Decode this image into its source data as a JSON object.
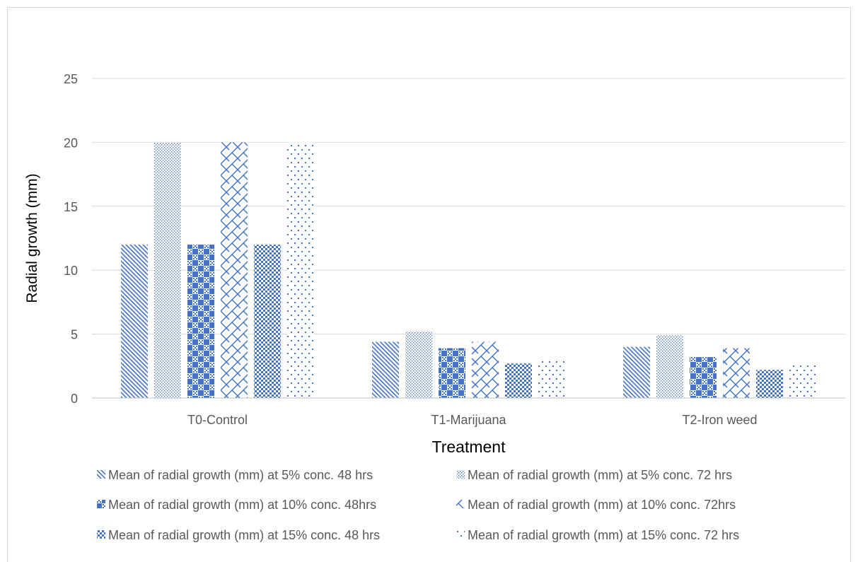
{
  "chart_data": {
    "type": "bar",
    "xlabel": "Treatment",
    "ylabel": "Radial growth (mm)",
    "categories": [
      "T0-Control",
      "T1-Marijuana",
      "T2-Iron weed"
    ],
    "ylim": [
      0,
      25
    ],
    "yticks": [
      0,
      5,
      10,
      15,
      20,
      25
    ],
    "grid": true,
    "legend": "bottom",
    "color": "#4472c4",
    "series": [
      {
        "name": "Mean of radial growth (mm) at 5% conc. 48 hrs",
        "values": [
          12,
          4.4,
          4.0
        ],
        "pattern": "diagonal-down"
      },
      {
        "name": "Mean of radial growth (mm) at 5% conc. 72 hrs",
        "values": [
          20,
          5.2,
          4.9
        ],
        "pattern": "dots"
      },
      {
        "name": "Mean of radial growth (mm) at 10% conc. 48hrs",
        "values": [
          12,
          3.9,
          3.2
        ],
        "pattern": "checker"
      },
      {
        "name": "Mean of radial growth (mm) at 10% conc. 72hrs",
        "values": [
          20,
          4.4,
          3.9
        ],
        "pattern": "diagonal-cross"
      },
      {
        "name": "Mean of radial growth (mm) at 15% conc. 48 hrs",
        "values": [
          12,
          2.7,
          2.2
        ],
        "pattern": "small-checker"
      },
      {
        "name": "Mean of radial growth (mm) at 15% conc. 72 hrs",
        "values": [
          20,
          3.1,
          2.6
        ],
        "pattern": "sparse-dots"
      }
    ]
  }
}
